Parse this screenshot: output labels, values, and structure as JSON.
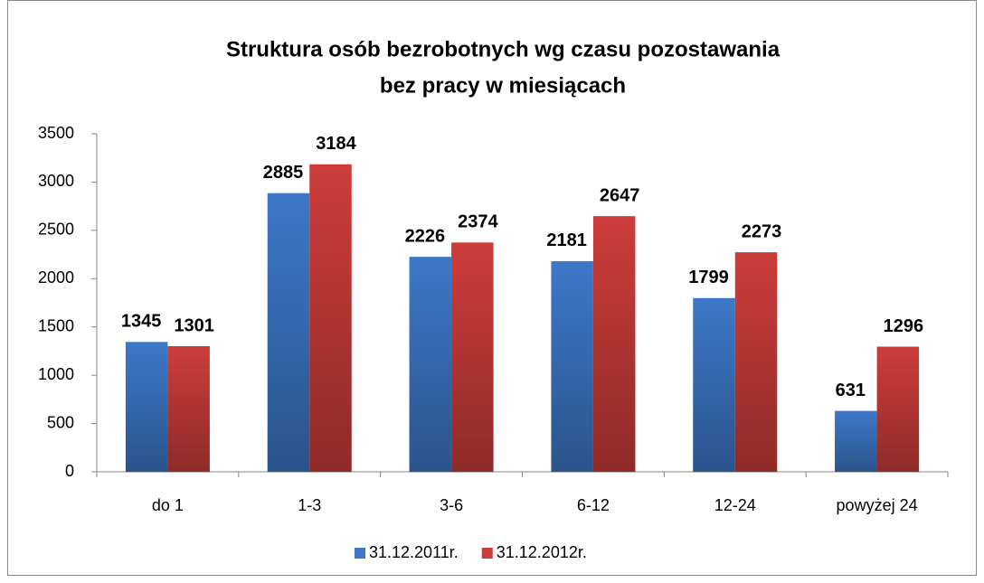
{
  "chart_data": {
    "type": "bar",
    "title": [
      "Struktura osób bezrobotnych wg czasu pozostawania",
      "bez pracy w miesiącach"
    ],
    "categories": [
      "do 1",
      "1-3",
      "3-6",
      "6-12",
      "12-24",
      "powyżej 24"
    ],
    "series": [
      {
        "name": "31.12.2011r.",
        "color": "#3d78c8",
        "values": [
          1345,
          2885,
          2226,
          2181,
          1799,
          631
        ]
      },
      {
        "name": "31.12.2012r.",
        "color": "#cc3d3a",
        "values": [
          1301,
          3184,
          2374,
          2647,
          2273,
          1296
        ]
      }
    ],
    "ylim": [
      0,
      3500
    ],
    "yticks": [
      0,
      500,
      1000,
      1500,
      2000,
      2500,
      3000,
      3500
    ],
    "legend": "bottom"
  }
}
